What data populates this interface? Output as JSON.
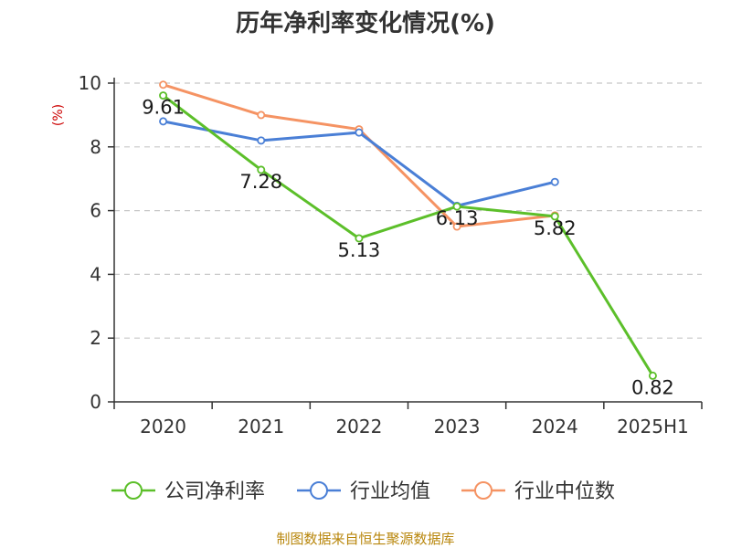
{
  "chart_data": {
    "type": "line",
    "title": "历年净利率变化情况(%)",
    "ylabel": "(%)",
    "categories": [
      "2020",
      "2021",
      "2022",
      "2023",
      "2024",
      "2025H1"
    ],
    "ylim": [
      0,
      10
    ],
    "yticks": [
      "0",
      "2",
      "4",
      "6",
      "8",
      "10"
    ],
    "grid": true,
    "legend_position": "bottom",
    "series": [
      {
        "name": "公司净利率",
        "color": "#5cbf2a",
        "values": [
          9.61,
          7.28,
          5.13,
          6.13,
          5.82,
          0.82
        ],
        "labels": [
          "9.61",
          "7.28",
          "5.13",
          "6.13",
          "5.82",
          "0.82"
        ]
      },
      {
        "name": "行业均值",
        "color": "#4a7fd6",
        "values": [
          8.8,
          8.2,
          8.45,
          6.15,
          6.9,
          null
        ]
      },
      {
        "name": "行业中位数",
        "color": "#f59363",
        "values": [
          9.95,
          9.0,
          8.55,
          5.5,
          5.85,
          null
        ]
      }
    ]
  },
  "source": "制图数据来自恒生聚源数据库"
}
